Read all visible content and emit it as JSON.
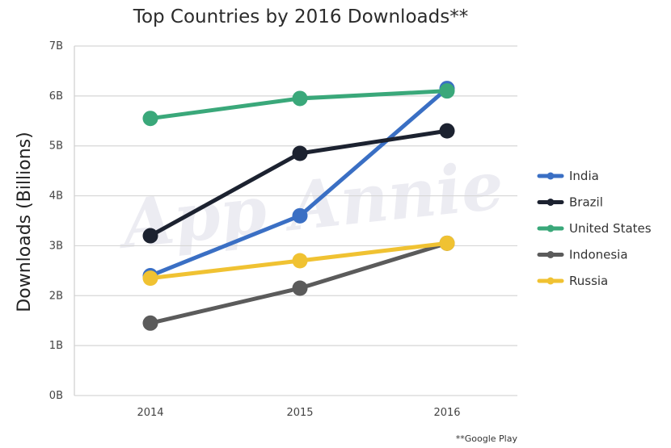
{
  "chart_data": {
    "type": "line",
    "title": "Top Countries by 2016 Downloads**",
    "ylabel": "Downloads (Billions)",
    "xlabel": "",
    "categories": [
      "2014",
      "2015",
      "2016"
    ],
    "ylim": [
      0,
      7
    ],
    "yticks": [
      "0B",
      "1B",
      "2B",
      "3B",
      "4B",
      "5B",
      "6B",
      "7B"
    ],
    "grid": true,
    "legend_position": "right",
    "watermark": "App Annie",
    "note": "**Google Play",
    "series": [
      {
        "name": "India",
        "color": "#3a6fc4",
        "values": [
          2.4,
          3.6,
          6.15
        ]
      },
      {
        "name": "Brazil",
        "color": "#1c2230",
        "values": [
          3.2,
          4.85,
          5.3
        ]
      },
      {
        "name": "United States",
        "color": "#3aa87a",
        "values": [
          5.55,
          5.95,
          6.1
        ]
      },
      {
        "name": "Indonesia",
        "color": "#5b5b5b",
        "values": [
          1.45,
          2.15,
          3.05
        ]
      },
      {
        "name": "Russia",
        "color": "#f0c232",
        "values": [
          2.35,
          2.7,
          3.05
        ]
      }
    ]
  }
}
